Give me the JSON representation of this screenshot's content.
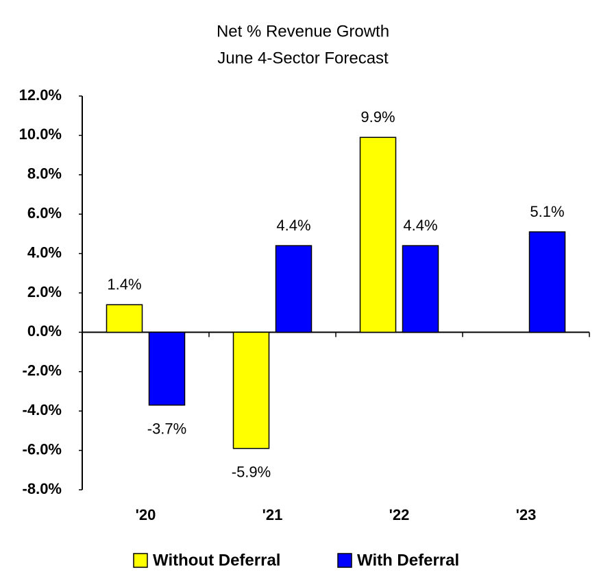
{
  "chart_data": {
    "type": "bar",
    "title": "Net % Revenue Growth",
    "subtitle": "June 4-Sector Forecast",
    "categories": [
      "'20",
      "'21",
      "'22",
      "'23"
    ],
    "series": [
      {
        "name": "Without Deferral",
        "color": "#ffff00",
        "values": [
          1.4,
          -5.9,
          9.9,
          null
        ],
        "value_labels": [
          "1.4%",
          "-5.9%",
          "9.9%",
          null
        ]
      },
      {
        "name": "With Deferral",
        "color": "#0000ff",
        "values": [
          -3.7,
          4.4,
          4.4,
          5.1
        ],
        "value_labels": [
          "-3.7%",
          "4.4%",
          "4.4%",
          "5.1%"
        ]
      }
    ],
    "ylim": [
      -8,
      12
    ],
    "yticks": [
      {
        "value": -8,
        "label": "-8.0%"
      },
      {
        "value": -6,
        "label": "-6.0%"
      },
      {
        "value": -4,
        "label": "-4.0%"
      },
      {
        "value": -2,
        "label": "-2.0%"
      },
      {
        "value": 0,
        "label": "0.0%"
      },
      {
        "value": 2,
        "label": "2.0%"
      },
      {
        "value": 4,
        "label": "4.0%"
      },
      {
        "value": 6,
        "label": "6.0%"
      },
      {
        "value": 8,
        "label": "8.0%"
      },
      {
        "value": 10,
        "label": "10.0%"
      },
      {
        "value": 12,
        "label": "12.0%"
      }
    ],
    "grid": false,
    "legend": "bottom"
  }
}
